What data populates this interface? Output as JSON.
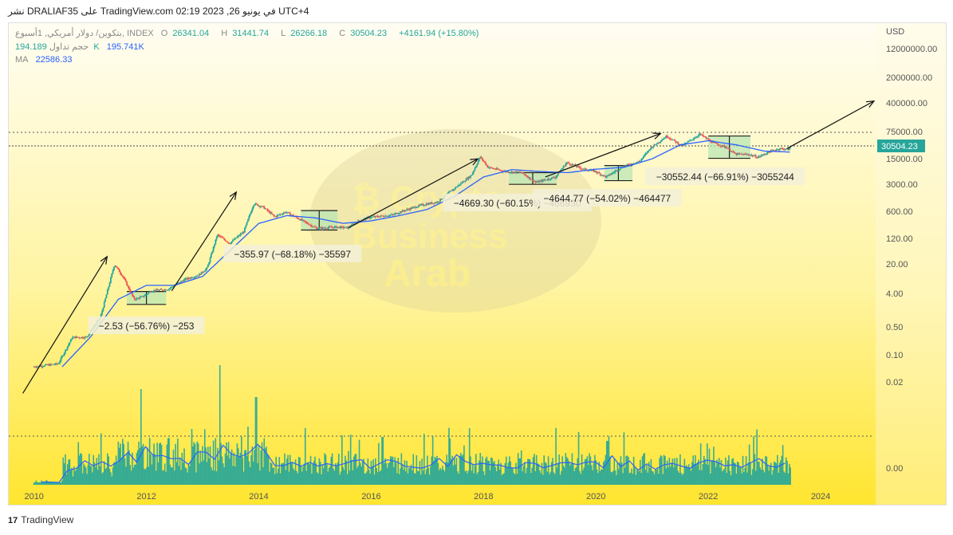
{
  "header": {
    "publish_line": "نشر DRALIAF35 على TradingView.com في يونيو 26, 2023 02:19 UTC+4"
  },
  "legend": {
    "symbol": "بتكوين/ دولار أمريكي, 1أسبوع, INDEX",
    "o_label": "O",
    "o_value": "26341.04",
    "h_label": "H",
    "h_value": "31441.74",
    "l_label": "L",
    "l_value": "26266.18",
    "c_label": "C",
    "c_value": "30504.23",
    "change": "+4161.94 (+15.80%)",
    "volume_label": "حجم تداول",
    "volume_value": "194.189K",
    "volume_ma_value": "195.741K",
    "ma_label": "MA",
    "ma_value": "22586.33"
  },
  "footer": {
    "logo": "17",
    "brand": "TradingView"
  },
  "colors": {
    "up": "#26a69a",
    "down": "#ef5350",
    "ma": "#2962ff",
    "bg_top": "#fffdf3",
    "bg_bottom": "#ffe52e",
    "box_fill": "#b7e5b4"
  },
  "chart_data": {
    "type": "candlestick",
    "title": "بتكوين/ دولار أمريكي",
    "scale": "log",
    "currency_label": "USD",
    "last_price_label": "30504.23",
    "y_ticks": [
      "12000000.00",
      "2000000.00",
      "400000.00",
      "75000.00",
      "15000.00",
      "3000.00",
      "600.00",
      "120.00",
      "20.00",
      "4.00",
      "0.50",
      "0.10",
      "0.02",
      "0.00"
    ],
    "x_ticks": [
      "2010",
      "2012",
      "2014",
      "2016",
      "2018",
      "2020",
      "2022",
      "2024"
    ],
    "price_path": [
      [
        2010.0,
        0.05
      ],
      [
        2010.45,
        0.06
      ],
      [
        2010.7,
        0.3
      ],
      [
        2010.95,
        0.3
      ],
      [
        2011.2,
        1
      ],
      [
        2011.45,
        25
      ],
      [
        2011.6,
        12
      ],
      [
        2011.8,
        3
      ],
      [
        2011.95,
        3.5
      ],
      [
        2012.1,
        5
      ],
      [
        2012.4,
        5.5
      ],
      [
        2012.7,
        10
      ],
      [
        2012.95,
        13
      ],
      [
        2013.1,
        20
      ],
      [
        2013.28,
        150
      ],
      [
        2013.5,
        90
      ],
      [
        2013.75,
        180
      ],
      [
        2013.93,
        1000
      ],
      [
        2014.1,
        800
      ],
      [
        2014.3,
        450
      ],
      [
        2014.5,
        600
      ],
      [
        2014.8,
        350
      ],
      [
        2015.05,
        220
      ],
      [
        2015.4,
        240
      ],
      [
        2015.6,
        230
      ],
      [
        2015.8,
        350
      ],
      [
        2015.99,
        430
      ],
      [
        2016.4,
        500
      ],
      [
        2016.6,
        650
      ],
      [
        2016.9,
        900
      ],
      [
        2017.2,
        1100
      ],
      [
        2017.5,
        2500
      ],
      [
        2017.8,
        5500
      ],
      [
        2017.96,
        17000
      ],
      [
        2018.1,
        9000
      ],
      [
        2018.4,
        7000
      ],
      [
        2018.7,
        6500
      ],
      [
        2018.95,
        3600
      ],
      [
        2019.3,
        5000
      ],
      [
        2019.5,
        12000
      ],
      [
        2019.8,
        8000
      ],
      [
        2019.99,
        7200
      ],
      [
        2020.2,
        5000
      ],
      [
        2020.5,
        9500
      ],
      [
        2020.8,
        13000
      ],
      [
        2020.99,
        29000
      ],
      [
        2021.28,
        60000
      ],
      [
        2021.55,
        33000
      ],
      [
        2021.87,
        67000
      ],
      [
        2022.1,
        40000
      ],
      [
        2022.35,
        30000
      ],
      [
        2022.5,
        20000
      ],
      [
        2022.75,
        19500
      ],
      [
        2022.9,
        16500
      ],
      [
        2023.1,
        23000
      ],
      [
        2023.3,
        28000
      ],
      [
        2023.45,
        26500
      ],
      [
        2023.48,
        30504
      ]
    ],
    "ma_path": [
      [
        2010.5,
        0.05
      ],
      [
        2011.0,
        0.3
      ],
      [
        2011.5,
        3
      ],
      [
        2012.0,
        7
      ],
      [
        2012.5,
        7
      ],
      [
        2013.0,
        12
      ],
      [
        2013.5,
        60
      ],
      [
        2014.0,
        300
      ],
      [
        2014.5,
        480
      ],
      [
        2015.0,
        420
      ],
      [
        2015.5,
        300
      ],
      [
        2016.0,
        350
      ],
      [
        2016.5,
        480
      ],
      [
        2017.0,
        700
      ],
      [
        2017.5,
        1600
      ],
      [
        2018.0,
        5000
      ],
      [
        2018.5,
        7800
      ],
      [
        2019.0,
        7000
      ],
      [
        2019.5,
        6500
      ],
      [
        2020.0,
        8000
      ],
      [
        2020.5,
        9000
      ],
      [
        2021.0,
        15000
      ],
      [
        2021.5,
        35000
      ],
      [
        2022.0,
        45000
      ],
      [
        2022.5,
        35000
      ],
      [
        2023.0,
        24000
      ],
      [
        2023.48,
        22586
      ]
    ],
    "annotations": [
      {
        "text": "−2.53 (−56.76%) −253",
        "x": 2012.0
      },
      {
        "text": "−355.97 (−68.18%) −35597",
        "x": 2014.6
      },
      {
        "text": "−4669.30 (−60.15%) −466930",
        "x": 2018.6
      },
      {
        "text": "−4644.77 (−54.02%) −464477",
        "x": 2020.2
      },
      {
        "text": "−30552.44 (−66.91%) −3055244",
        "x": 2022.3
      }
    ],
    "watermark": "Crypto Business Arab"
  }
}
